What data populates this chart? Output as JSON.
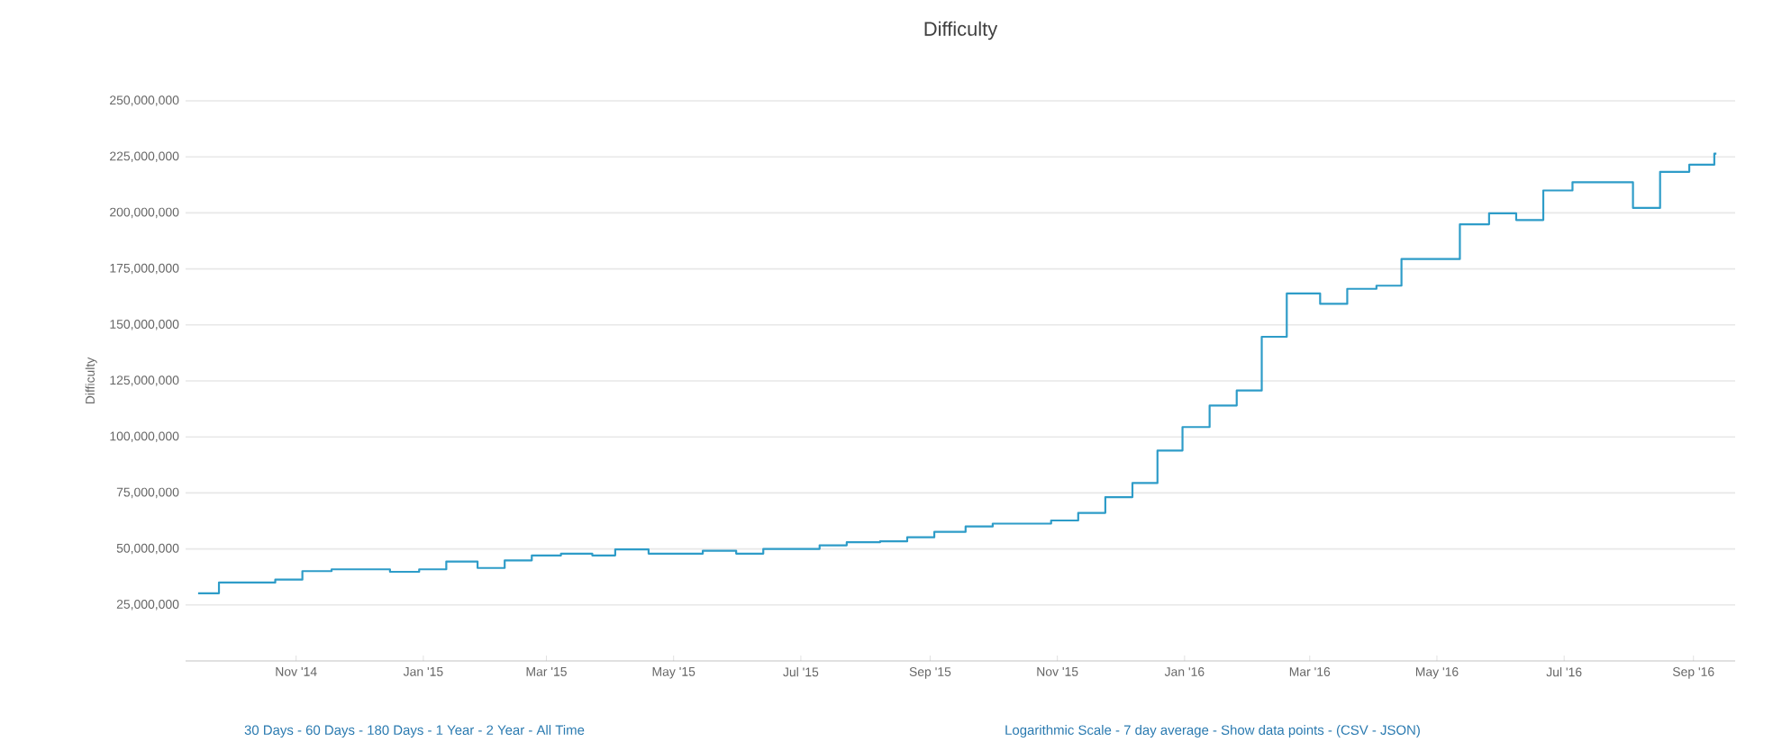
{
  "chart_data": {
    "type": "step",
    "title": "Difficulty",
    "ylabel": "Difficulty",
    "x": [
      "2014-09-15",
      "2014-09-25",
      "2014-10-22",
      "2014-11-04",
      "2014-11-18",
      "2014-12-16",
      "2014-12-30",
      "2015-01-12",
      "2015-01-27",
      "2015-02-09",
      "2015-02-22",
      "2015-03-08",
      "2015-03-23",
      "2015-04-03",
      "2015-04-19",
      "2015-05-15",
      "2015-05-31",
      "2015-06-13",
      "2015-07-10",
      "2015-07-23",
      "2015-08-08",
      "2015-08-21",
      "2015-09-03",
      "2015-09-18",
      "2015-10-01",
      "2015-10-29",
      "2015-11-11",
      "2015-11-24",
      "2015-12-07",
      "2015-12-19",
      "2015-12-31",
      "2016-01-13",
      "2016-01-26",
      "2016-02-07",
      "2016-02-19",
      "2016-03-06",
      "2016-03-19",
      "2016-04-02",
      "2016-04-14",
      "2016-05-12",
      "2016-05-26",
      "2016-06-08",
      "2016-06-21",
      "2016-07-05",
      "2016-08-03",
      "2016-08-16",
      "2016-08-30",
      "2016-09-11",
      "2016-09-12"
    ],
    "series": [
      {
        "color": "#2e9cc8",
        "values": [
          30200000,
          35000000,
          36300000,
          40100000,
          40900000,
          39800000,
          40900000,
          44400000,
          41500000,
          44900000,
          47100000,
          47900000,
          47100000,
          49800000,
          47900000,
          49200000,
          47900000,
          50000000,
          51600000,
          53000000,
          53400000,
          55200000,
          57600000,
          60000000,
          61300000,
          62700000,
          66100000,
          73100000,
          79400000,
          93900000,
          104400000,
          114000000,
          120700000,
          144700000,
          164000000,
          159400000,
          166100000,
          167500000,
          179400000,
          194900000,
          199800000,
          196800000,
          210000000,
          213700000,
          202200000,
          218300000,
          221500000,
          226400000,
          226400000
        ]
      }
    ],
    "xlim": [
      "2014-09-09",
      "2016-09-21"
    ],
    "xticks": [
      {
        "value": "2014-11-01",
        "label": "Nov '14"
      },
      {
        "value": "2015-01-01",
        "label": "Jan '15"
      },
      {
        "value": "2015-03-01",
        "label": "Mar '15"
      },
      {
        "value": "2015-05-01",
        "label": "May '15"
      },
      {
        "value": "2015-07-01",
        "label": "Jul '15"
      },
      {
        "value": "2015-09-01",
        "label": "Sep '15"
      },
      {
        "value": "2015-11-01",
        "label": "Nov '15"
      },
      {
        "value": "2016-01-01",
        "label": "Jan '16"
      },
      {
        "value": "2016-03-01",
        "label": "Mar '16"
      },
      {
        "value": "2016-05-01",
        "label": "May '16"
      },
      {
        "value": "2016-07-01",
        "label": "Jul '16"
      },
      {
        "value": "2016-09-01",
        "label": "Sep '16"
      }
    ],
    "ylim": [
      0,
      250000000
    ],
    "yticks": [
      {
        "value": 25000000,
        "label": "25,000,000"
      },
      {
        "value": 50000000,
        "label": "50,000,000"
      },
      {
        "value": 75000000,
        "label": "75,000,000"
      },
      {
        "value": 100000000,
        "label": "100,000,000"
      },
      {
        "value": 125000000,
        "label": "125,000,000"
      },
      {
        "value": 150000000,
        "label": "150,000,000"
      },
      {
        "value": 175000000,
        "label": "175,000,000"
      },
      {
        "value": 200000000,
        "label": "200,000,000"
      },
      {
        "value": 225000000,
        "label": "225,000,000"
      },
      {
        "value": 250000000,
        "label": "250,000,000"
      }
    ],
    "grid": "y",
    "marker": "none",
    "line_style": "solid",
    "annotations": [
      "30 Days - 60 Days - 180 Days - 1 Year - 2 Year - All Time",
      "Logarithmic Scale - 7 day average - Show data points - (CSV - JSON)"
    ]
  }
}
